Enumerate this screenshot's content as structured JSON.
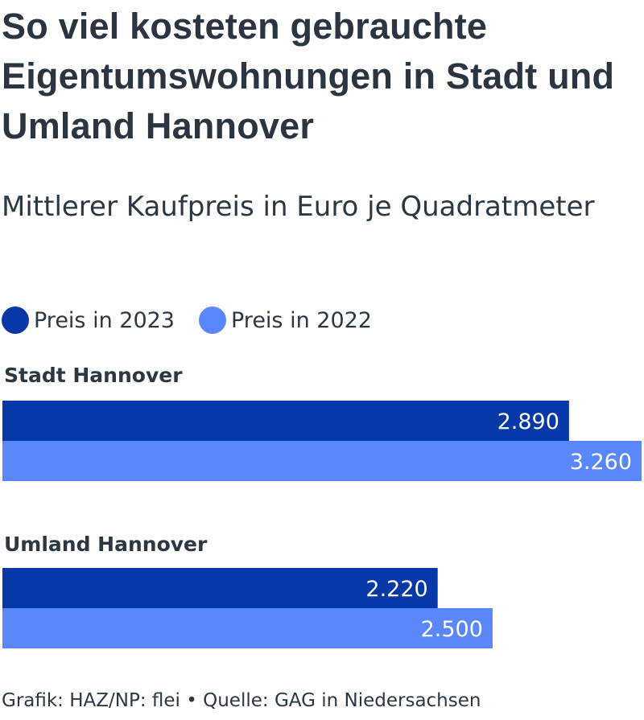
{
  "title": "So viel kosteten gebrauchte Eigentumswohnungen in Stadt und Umland Hannover",
  "subtitle": "Mittlerer Kaufpreis in Euro je Quadratmeter",
  "legend": [
    {
      "label": "Preis in 2023",
      "color": "#0638a8"
    },
    {
      "label": "Preis in 2022",
      "color": "#5a87fa"
    }
  ],
  "footer": "Grafik: HAZ/NP: flei • Quelle: GAG in Niedersachsen",
  "chart_data": {
    "type": "bar",
    "orientation": "horizontal",
    "categories": [
      "Stadt Hannover",
      "Umland Hannover"
    ],
    "series": [
      {
        "name": "Preis in 2023",
        "values": [
          2890,
          2220
        ],
        "labels": [
          "2.890",
          "2.220"
        ],
        "color": "#0638a8"
      },
      {
        "name": "Preis in 2022",
        "values": [
          3260,
          2500
        ],
        "labels": [
          "3.260",
          "2.500"
        ],
        "color": "#5a87fa"
      }
    ],
    "xlim": [
      0,
      3260
    ],
    "grid": false,
    "legend": "top-left"
  }
}
